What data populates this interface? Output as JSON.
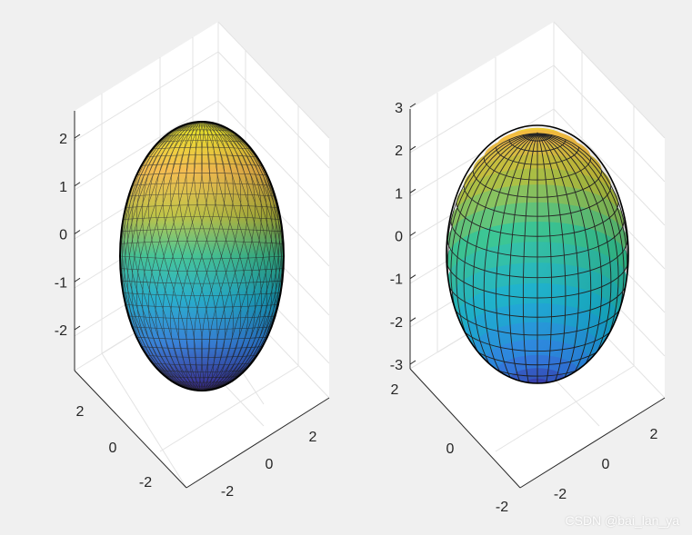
{
  "chart_data": [
    {
      "type": "surface-3d",
      "surface": "ellipsoid",
      "colormap": "parula",
      "mesh": "fine-triangular",
      "view": "3d",
      "z_ticks": [
        "2",
        "1",
        "0",
        "-1",
        "-2"
      ],
      "x_ticks": [
        "-2",
        "0",
        "2"
      ],
      "y_ticks": [
        "2",
        "0",
        "-2"
      ],
      "zlim": [
        -2.8,
        2.8
      ],
      "grid": true
    },
    {
      "type": "surface-3d",
      "surface": "ellipsoid",
      "colormap": "parula",
      "mesh": "coarse-quadrilateral",
      "view": "3d",
      "z_ticks": [
        "3",
        "2",
        "1",
        "0",
        "-1",
        "-2",
        "-3"
      ],
      "x_ticks": [
        "-2",
        "0",
        "2"
      ],
      "y_ticks": [
        "2",
        "0",
        "-2"
      ],
      "zlim": [
        -3,
        3
      ],
      "grid": true
    }
  ],
  "watermark": "CSDN @bai_lan_ya",
  "colors": {
    "background": "#f0f0f0",
    "axes_bg": "#ffffff",
    "grid": "#dddddd",
    "axis": "#262626",
    "parula": [
      "#3e26a8",
      "#2e87f7",
      "#10b3d8",
      "#2fc48f",
      "#b7bd2f",
      "#fdbb3c",
      "#f9fb0e"
    ]
  }
}
